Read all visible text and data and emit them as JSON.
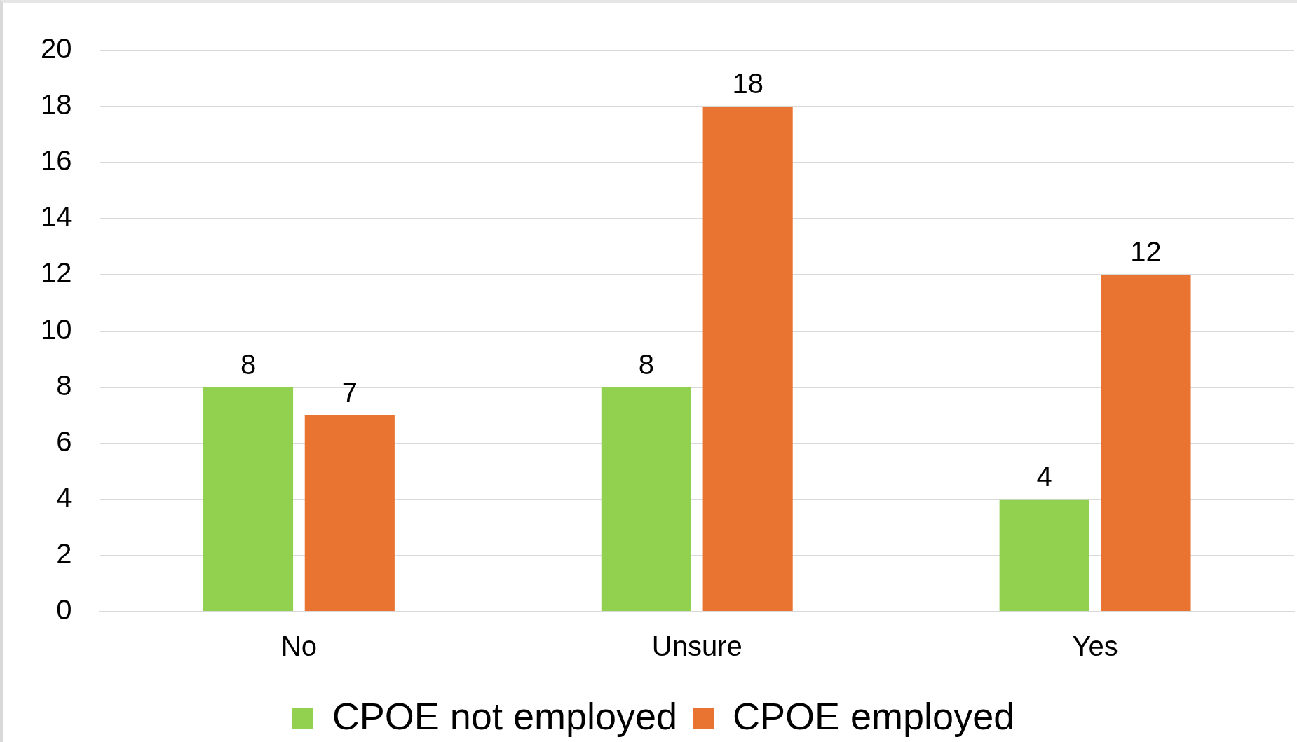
{
  "chart_data": {
    "type": "bar",
    "categories": [
      "No",
      "Unsure",
      "Yes"
    ],
    "series": [
      {
        "name": "CPOE not employed",
        "color": "#92d050",
        "values": [
          8,
          8,
          4
        ]
      },
      {
        "name": "CPOE employed",
        "color": "#e97432",
        "values": [
          7,
          18,
          12
        ]
      }
    ],
    "ylim": [
      0,
      20
    ],
    "yticks": [
      0,
      2,
      4,
      6,
      8,
      10,
      12,
      14,
      16,
      18,
      20
    ],
    "grid": "y",
    "legend": "bottom",
    "data_labels": true
  }
}
